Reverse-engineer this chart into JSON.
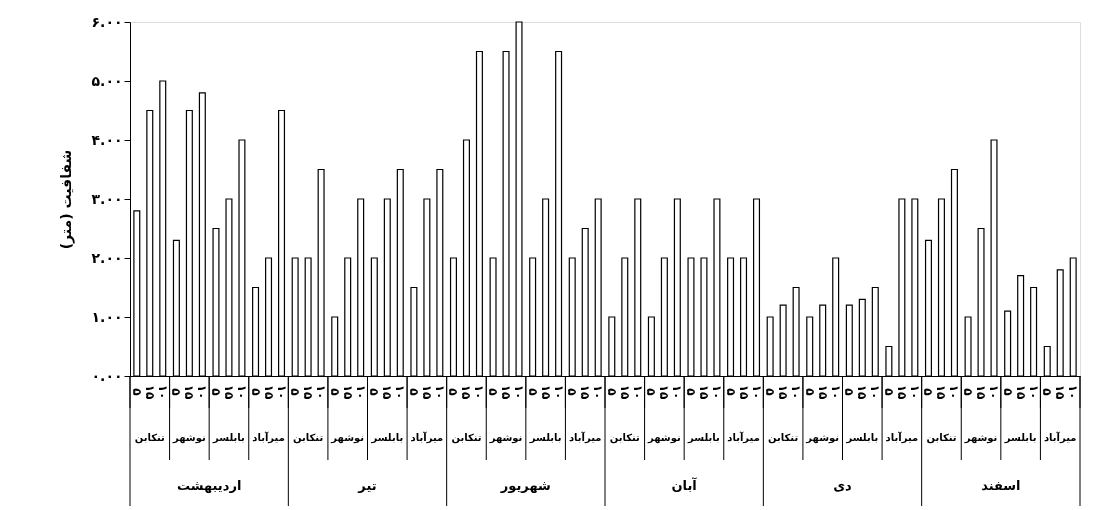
{
  "chart_data": {
    "type": "bar",
    "ylabel": "شفافیت (متر)",
    "categories": [
      "تنکابن",
      "نوشهر",
      "بابلسر",
      "میرآباد",
      "تنکابن",
      "نوشهر",
      "بابلسر",
      "میرآباد",
      "تنکابن",
      "نوشهر",
      "بابلسر",
      "میرآباد",
      "تنکابن",
      "نوشهر",
      "بابلسر",
      "میرآباد",
      "تنکابن",
      "نوشهر",
      "بابلسر",
      "میرآباد",
      "تنکابن",
      "نوشهر",
      "بابلسر",
      "میرآباد"
    ],
    "series": [
      {
        "name": "۵",
        "color": "#ffffff",
        "values": [
          2.8,
          2.3,
          2.5,
          1.5,
          2.0,
          1.0,
          2.0,
          1.5,
          2.0,
          2.0,
          2.0,
          2.0,
          1.0,
          1.0,
          2.0,
          2.0,
          1.0,
          1.0,
          1.2,
          0.5,
          2.3,
          1.0,
          1.1,
          0.5
        ]
      },
      {
        "name": "۱۵",
        "color": "#ffffff",
        "values": [
          4.5,
          4.5,
          3.0,
          2.0,
          2.0,
          2.0,
          3.0,
          3.0,
          4.0,
          5.5,
          3.0,
          2.5,
          2.0,
          2.0,
          2.0,
          2.0,
          1.2,
          1.2,
          1.3,
          3.0,
          3.0,
          2.5,
          1.7,
          1.8
        ]
      },
      {
        "name": "۱۰",
        "color": "#ffffff",
        "values": [
          5.0,
          4.8,
          4.0,
          4.5,
          3.5,
          3.0,
          3.5,
          3.5,
          5.5,
          6.0,
          5.5,
          3.0,
          3.0,
          3.0,
          3.0,
          3.0,
          1.5,
          2.0,
          1.5,
          3.0,
          3.5,
          4.0,
          1.5,
          2.0
        ]
      }
    ],
    "annotations": [
      "اردیبهشت",
      "تیر",
      "شهریور",
      "آبان",
      "دی",
      "اسفند"
    ],
    "ylim": [
      0,
      6
    ],
    "yticks": [
      {
        "value": 0,
        "label": "۰.۰۰"
      },
      {
        "value": 1,
        "label": "۱.۰۰"
      },
      {
        "value": 2,
        "label": "۲.۰۰"
      },
      {
        "value": 3,
        "label": "۳.۰۰"
      },
      {
        "value": 4,
        "label": "۴.۰۰"
      },
      {
        "value": 5,
        "label": "۵.۰۰"
      },
      {
        "value": 6,
        "label": "۶.۰۰"
      }
    ],
    "grid": false
  }
}
